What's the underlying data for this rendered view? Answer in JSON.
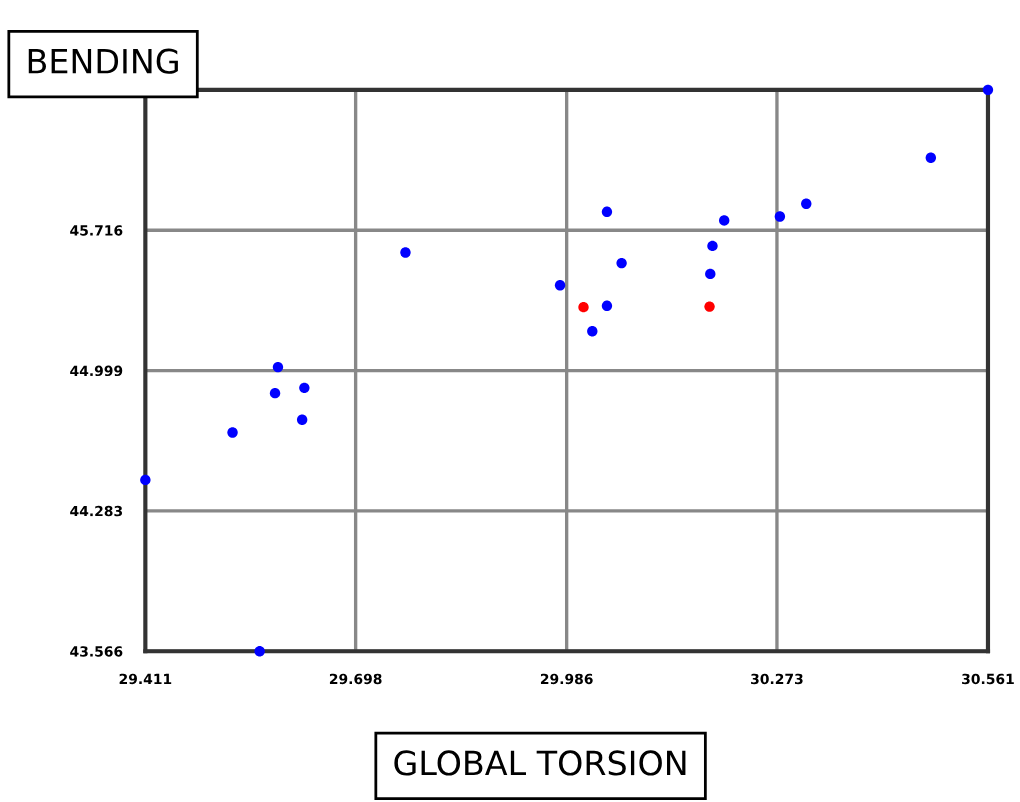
{
  "chart_data": {
    "type": "scatter",
    "xlabel": "GLOBAL TORSION",
    "ylabel": "BENDING",
    "xlim": [
      29.411,
      30.561
    ],
    "ylim": [
      43.566,
      46.433
    ],
    "xticks": [
      29.411,
      29.698,
      29.986,
      30.273,
      30.561
    ],
    "yticks": [
      43.566,
      44.283,
      44.999,
      45.716,
      {
        "value": 46.433,
        "label": null
      }
    ],
    "grid": true,
    "legend": false,
    "marker": "circle",
    "series": [
      {
        "color": "#0000ff",
        "x": [
          30.561,
          30.483,
          30.313,
          30.277,
          30.201,
          30.041,
          30.185,
          30.182,
          30.061,
          29.977,
          30.041,
          30.021,
          29.766,
          29.592,
          29.588,
          29.628,
          29.625,
          29.53,
          29.411,
          29.567
        ],
        "values": [
          46.433,
          46.086,
          45.851,
          45.786,
          45.766,
          45.81,
          45.636,
          45.493,
          45.548,
          45.435,
          45.33,
          45.2,
          45.602,
          45.017,
          44.884,
          44.911,
          44.748,
          44.683,
          44.441,
          43.566
        ]
      },
      {
        "color": "#ff0000",
        "x": [
          30.009,
          30.181
        ],
        "values": [
          45.323,
          45.326
        ]
      }
    ]
  }
}
